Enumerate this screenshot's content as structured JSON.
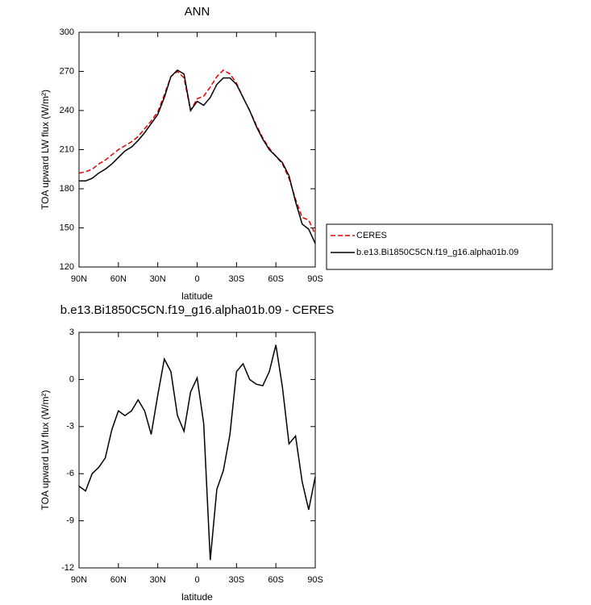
{
  "chart_data": [
    {
      "type": "line",
      "title": "ANN",
      "x_label": "latitude",
      "y_label": "TOA upward LW flux (W/m²)",
      "x": [
        90,
        85,
        80,
        75,
        70,
        65,
        60,
        55,
        50,
        45,
        40,
        35,
        30,
        25,
        20,
        15,
        10,
        5,
        0,
        -5,
        -10,
        -15,
        -20,
        -25,
        -30,
        -35,
        -40,
        -45,
        -50,
        -55,
        -60,
        -65,
        -70,
        -75,
        -80,
        -85,
        -90
      ],
      "xlim": [
        90,
        -90
      ],
      "xticks": [
        {
          "value": 90,
          "label": "90N"
        },
        {
          "value": 60,
          "label": "60N"
        },
        {
          "value": 30,
          "label": "30N"
        },
        0,
        {
          "value": -30,
          "label": "30S"
        },
        {
          "value": -60,
          "label": "60S"
        },
        {
          "value": -90,
          "label": "90S"
        }
      ],
      "ylim": [
        120,
        300
      ],
      "yticks": [
        120,
        150,
        180,
        210,
        240,
        270,
        300
      ],
      "legend": "right",
      "series": [
        {
          "name": "CERES",
          "color": "#e00000",
          "dashed": true,
          "values": [
            192,
            193,
            195,
            199,
            202,
            206,
            210,
            213,
            216,
            220,
            226,
            232,
            239,
            252,
            266,
            270,
            265,
            240,
            249,
            251,
            258,
            266,
            271,
            268,
            261,
            250,
            240,
            229,
            219,
            211,
            205,
            199,
            188,
            172,
            158,
            156,
            145
          ]
        },
        {
          "name": "b.e13.Bi1850C5CN.f19_g16.alpha01b.09",
          "color": "#000000",
          "dashed": false,
          "values": [
            186,
            186,
            188,
            192,
            195,
            199,
            204,
            209,
            212,
            217,
            223,
            230,
            237,
            250,
            266,
            271,
            268,
            240,
            247,
            244,
            250,
            260,
            265,
            265,
            260,
            250,
            240,
            228,
            218,
            210,
            205,
            200,
            190,
            170,
            153,
            149,
            138
          ]
        }
      ]
    },
    {
      "type": "line",
      "title": "b.e13.Bi1850C5CN.f19_g16.alpha01b.09 - CERES",
      "x_label": "latitude",
      "y_label": "TOA upward LW flux (W/m²)",
      "x": [
        90,
        85,
        80,
        75,
        70,
        65,
        60,
        55,
        50,
        45,
        40,
        35,
        30,
        25,
        20,
        15,
        10,
        5,
        0,
        -5,
        -10,
        -15,
        -20,
        -25,
        -30,
        -35,
        -40,
        -45,
        -50,
        -55,
        -60,
        -65,
        -70,
        -75,
        -80,
        -85,
        -90
      ],
      "xlim": [
        90,
        -90
      ],
      "xticks": [
        {
          "value": 90,
          "label": "90N"
        },
        {
          "value": 60,
          "label": "60N"
        },
        {
          "value": 30,
          "label": "30N"
        },
        0,
        {
          "value": -30,
          "label": "30S"
        },
        {
          "value": -60,
          "label": "60S"
        },
        {
          "value": -90,
          "label": "90S"
        }
      ],
      "ylim": [
        -12,
        3
      ],
      "yticks": [
        -12,
        -9,
        -6,
        -3,
        0,
        3
      ],
      "series": [
        {
          "color": "#000000",
          "dashed": false,
          "values": [
            -6.8,
            -7.1,
            -6.0,
            -5.6,
            -5.0,
            -3.2,
            -2.0,
            -2.3,
            -2.0,
            -1.3,
            -2.0,
            -3.5,
            -1.0,
            1.3,
            0.5,
            -2.3,
            -3.3,
            -0.8,
            0.1,
            -2.8,
            -11.5,
            -7.0,
            -5.8,
            -3.5,
            0.5,
            1.0,
            0.0,
            -0.3,
            -0.4,
            0.5,
            2.2,
            -0.5,
            -4.1,
            -3.6,
            -6.5,
            -8.3,
            -6.2
          ]
        }
      ]
    }
  ]
}
